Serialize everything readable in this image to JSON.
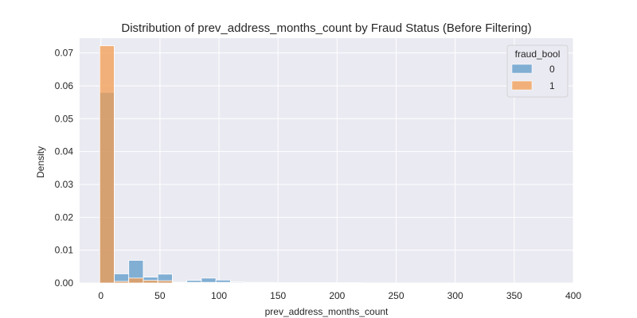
{
  "chart_data": {
    "type": "bar",
    "title": "Distribution of prev_address_months_count by Fraud Status (Before Filtering)",
    "xlabel": "prev_address_months_count",
    "ylabel": "Density",
    "xlim": [
      -18,
      400
    ],
    "ylim": [
      0,
      0.0745
    ],
    "x_ticks": [
      0,
      50,
      100,
      150,
      200,
      250,
      300,
      350,
      400
    ],
    "x_tick_labels": [
      "0",
      "50",
      "100",
      "150",
      "200",
      "250",
      "300",
      "350",
      "400"
    ],
    "y_ticks": [
      0,
      0.01,
      0.02,
      0.03,
      0.04,
      0.05,
      0.06,
      0.07
    ],
    "y_tick_labels": [
      "0.00",
      "0.01",
      "0.02",
      "0.03",
      "0.04",
      "0.05",
      "0.06",
      "0.07"
    ],
    "grid": true,
    "background": "#eaeaf2",
    "bin_edges": [
      -1,
      11.3,
      23.6,
      35.9,
      48.2,
      60.5,
      72.8,
      85.1,
      97.4,
      109.7,
      122,
      134.3,
      146.6,
      158.9,
      171.2,
      183.5,
      195.8,
      208.1,
      220.4,
      232.7,
      245,
      257.3,
      269.6,
      281.9,
      294.2,
      306.5,
      318.8,
      331.1,
      343.4,
      355.7,
      368,
      380.3,
      392.6
    ],
    "legend": {
      "title": "fraud_bool",
      "position": "top-right"
    },
    "series": [
      {
        "name": "0",
        "color": "#5e9ac8",
        "values": [
          0.058,
          0.0028,
          0.0069,
          0.0018,
          0.0027,
          0.0004,
          0.0008,
          0.0015,
          0.0009,
          0.0003,
          0.0002,
          0.0002,
          0.0001,
          0.0001,
          0.0001,
          0.0001,
          0.0001,
          0.0001,
          0.0,
          0.0,
          0.0,
          0.0,
          0.0,
          0.0,
          0.0,
          0.0,
          0.0,
          0.0,
          0.0,
          0.0,
          0.0,
          0.0
        ]
      },
      {
        "name": "1",
        "color": "#f39c50",
        "values": [
          0.0722,
          0.0005,
          0.0015,
          0.0008,
          0.0007,
          0.0002,
          0.0002,
          0.0002,
          0.0002,
          0.0001,
          0.0,
          0.0,
          0.0,
          0.0,
          0.0,
          0.0,
          0.0,
          0.0,
          0.0,
          0.0,
          0.0,
          0.0,
          0.0,
          0.0,
          0.0,
          0.0,
          0.0,
          0.0,
          0.0,
          0.0,
          0.0,
          0.0
        ]
      }
    ]
  }
}
